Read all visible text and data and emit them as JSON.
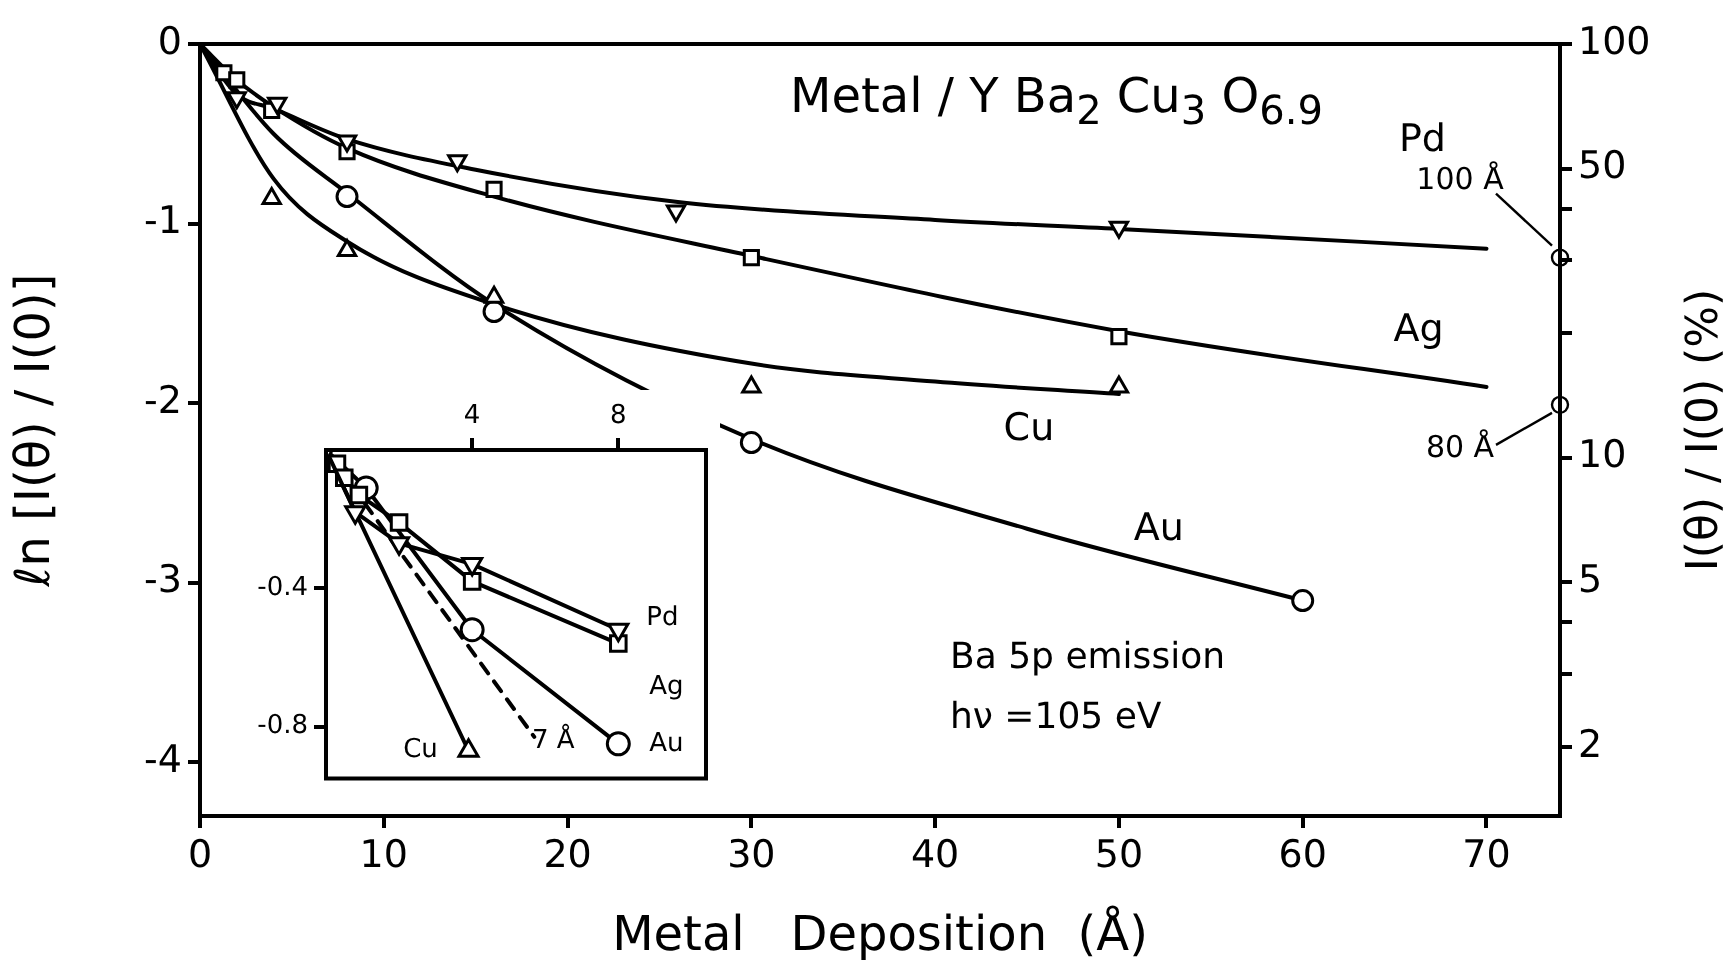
{
  "chart_data": [
    {
      "type": "line",
      "title": "Metal / Y Ba$_{2}$ Cu$_{3}$ O$_{6.9}$",
      "xlabel": "Metal   Deposition  (Å)",
      "ylabel": "ℓn [I(θ) / I(0)]",
      "y2label": "I(θ) / I(0)  (%)",
      "annotations": [
        "Ba 5p  emission",
        "hν =105 eV",
        {
          "text": "100 Å",
          "x": 74,
          "y": -1.19
        },
        {
          "text": "80 Å",
          "x": 74,
          "y": -2.01
        }
      ],
      "series": [
        {
          "name": "Pd",
          "marker": "none",
          "color": "#000000",
          "x": [
            0,
            2,
            4,
            8,
            15,
            26,
            40,
            50,
            70
          ],
          "values": [
            0,
            -0.28,
            -0.36,
            -0.53,
            -0.7,
            -0.88,
            -0.98,
            -1.03,
            -1.14
          ]
        },
        {
          "name": "Ag",
          "marker": "none",
          "color": "#000000",
          "x": [
            0,
            2,
            4,
            8,
            16,
            30,
            50,
            70
          ],
          "values": [
            0,
            -0.2,
            -0.35,
            -0.58,
            -0.85,
            -1.18,
            -1.6,
            -1.91
          ]
        },
        {
          "name": "Cu",
          "marker": "none",
          "color": "#000000",
          "x": [
            0,
            4,
            8,
            16,
            30,
            40,
            50
          ],
          "values": [
            0,
            -0.75,
            -1.1,
            -1.45,
            -1.78,
            -1.88,
            -1.95
          ]
        },
        {
          "name": "Au",
          "marker": "none",
          "color": "#000000",
          "x": [
            0,
            4,
            8,
            16,
            30,
            45,
            60
          ],
          "values": [
            0,
            -0.5,
            -0.83,
            -1.45,
            -2.2,
            -2.7,
            -3.1
          ]
        },
        {
          "type": "scatter",
          "marker": "triangle_down",
          "color": "#000000",
          "x": [
            2,
            4.2,
            8,
            14,
            25.9,
            50
          ],
          "values": [
            -0.3,
            -0.33,
            -0.54,
            -0.65,
            -0.93,
            -1.02
          ]
        },
        {
          "type": "scatter",
          "marker": "square",
          "color": "#000000",
          "x": [
            1.3,
            2,
            3.9,
            8,
            16,
            30,
            50
          ],
          "values": [
            -0.16,
            -0.2,
            -0.37,
            -0.6,
            -0.81,
            -1.19,
            -1.63
          ]
        },
        {
          "type": "scatter",
          "marker": "triangle",
          "color": "#000000",
          "x": [
            3.9,
            8,
            16,
            30,
            50
          ],
          "values": [
            -0.86,
            -1.15,
            -1.41,
            -1.91,
            -1.91
          ]
        },
        {
          "type": "scatter",
          "marker": "circle",
          "color": "#000000",
          "x": [
            8,
            16,
            30,
            60
          ],
          "values": [
            -0.85,
            -1.49,
            -2.22,
            -3.1
          ]
        }
      ],
      "xlim": [
        0,
        74
      ],
      "xticks": [
        0,
        10,
        20,
        30,
        40,
        50,
        60,
        70
      ],
      "ylim": [
        -4.3,
        0
      ],
      "yticks": [
        0,
        -1,
        -2,
        -3,
        -4
      ],
      "y2lim": [
        1.36,
        100
      ],
      "y2ticks": [
        2,
        {
          "value": 3,
          "label": null
        },
        {
          "value": 4,
          "label": null
        },
        5,
        10,
        {
          "value": 20,
          "label": null
        },
        {
          "value": 30,
          "label": null
        },
        {
          "value": 40,
          "label": null
        },
        50,
        100
      ],
      "log": "y2",
      "grid": false,
      "legend": false
    },
    {
      "type": "line",
      "annotations": [
        "7 Å"
      ],
      "series": [
        {
          "name": "Pd",
          "marker": "triangle_down",
          "color": "#000000",
          "x": [
            0,
            0.8,
            2,
            4,
            8
          ],
          "values": [
            0,
            -0.18,
            -0.27,
            -0.33,
            -0.52
          ]
        },
        {
          "name": "Ag",
          "marker": "square",
          "color": "#000000",
          "x": [
            0,
            0.3,
            0.5,
            0.9,
            2,
            4,
            8
          ],
          "values": [
            0,
            -0.04,
            -0.08,
            -0.13,
            -0.21,
            -0.38,
            -0.56
          ]
        },
        {
          "name": "Au",
          "marker": "circle",
          "color": "#000000",
          "x": [
            0,
            1.1,
            4,
            8
          ],
          "values": [
            0,
            -0.11,
            -0.52,
            -0.85
          ]
        },
        {
          "name": "Cu",
          "marker": "triangle",
          "color": "#000000",
          "x": [
            0,
            3.9
          ],
          "values": [
            0,
            -0.87
          ]
        },
        {
          "marker": "none",
          "line_style": "dashed",
          "color": "#000000",
          "x": [
            0,
            5.7
          ],
          "values": [
            0,
            -0.83
          ]
        }
      ],
      "xlim": [
        0,
        10.4
      ],
      "xticks": [
        4,
        8
      ],
      "ylim": [
        -0.95,
        0
      ],
      "yticks": [
        -0.4,
        -0.8
      ],
      "grid": false,
      "legend": false
    }
  ]
}
